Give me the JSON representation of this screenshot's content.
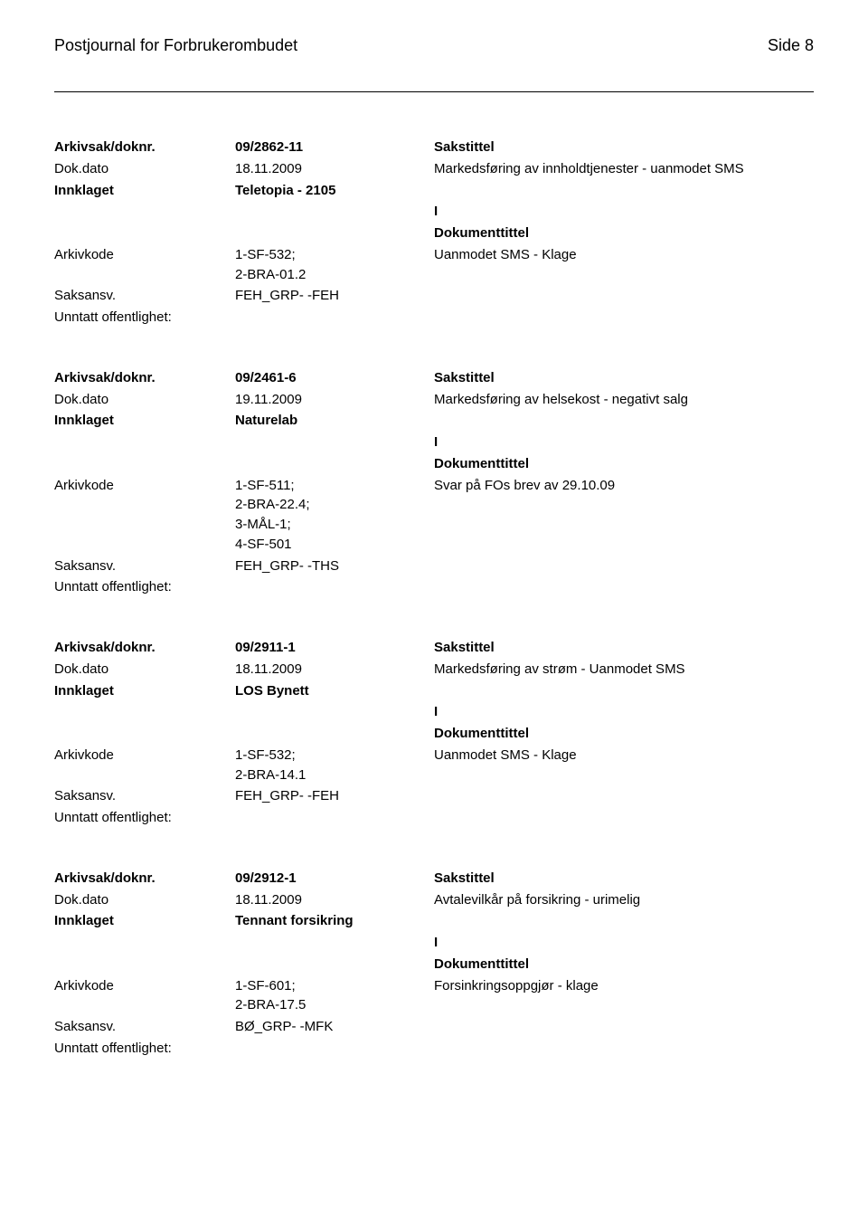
{
  "header": {
    "journal_title": "Postjournal for Forbrukerombudet",
    "page_label": "Side 8"
  },
  "labels": {
    "arkivsak": "Arkivsak/doknr.",
    "dokdato": "Dok.dato",
    "innklaget": "Innklaget",
    "arkivkode": "Arkivkode",
    "saksansv": "Saksansv.",
    "unntatt": "Unntatt offentlighet:",
    "sakstittel": "Sakstittel",
    "dokumenttittel": "Dokumenttittel",
    "i": "I"
  },
  "records": [
    {
      "arkivsak": "09/2862-11",
      "dokdato": "18.11.2009",
      "sakstittel": "Markedsføring av innholdtjenester - uanmodet SMS",
      "innklaget": "Teletopia - 2105",
      "arkivkode": "1-SF-532;\n2-BRA-01.2",
      "dokumenttittel": "Uanmodet SMS - Klage",
      "saksansv": "FEH_GRP- -FEH"
    },
    {
      "arkivsak": "09/2461-6",
      "dokdato": "19.11.2009",
      "sakstittel": "Markedsføring av helsekost - negativt salg",
      "innklaget": "Naturelab",
      "arkivkode": "1-SF-511;\n2-BRA-22.4;\n3-MÅL-1;\n4-SF-501",
      "dokumenttittel": "Svar på FOs brev av 29.10.09",
      "saksansv": "FEH_GRP- -THS"
    },
    {
      "arkivsak": "09/2911-1",
      "dokdato": "18.11.2009",
      "sakstittel": "Markedsføring av strøm - Uanmodet SMS",
      "innklaget": "LOS Bynett",
      "arkivkode": "1-SF-532;\n2-BRA-14.1",
      "dokumenttittel": "Uanmodet SMS - Klage",
      "saksansv": "FEH_GRP- -FEH"
    },
    {
      "arkivsak": "09/2912-1",
      "dokdato": "18.11.2009",
      "sakstittel": "Avtalevilkår på forsikring - urimelig",
      "innklaget": "Tennant forsikring",
      "arkivkode": "1-SF-601;\n2-BRA-17.5",
      "dokumenttittel": "Forsinkringsoppgjør - klage",
      "saksansv": "BØ_GRP- -MFK"
    }
  ]
}
